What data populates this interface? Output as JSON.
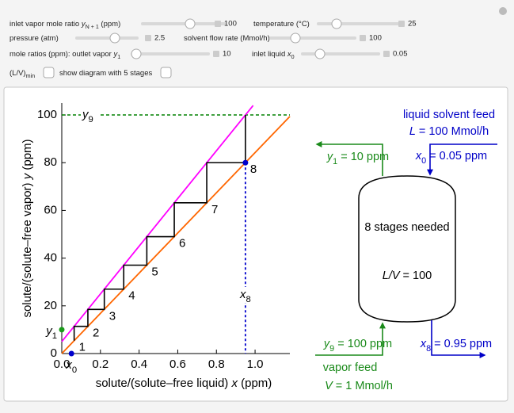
{
  "controls": {
    "inlet_vapor": {
      "label": "inlet vapor mole ratio ",
      "symbol": "y",
      "subscript": "N + 1",
      "unit": " (ppm)",
      "value": 100
    },
    "temperature": {
      "label": "temperature (°C)",
      "value": 25
    },
    "pressure": {
      "label": "pressure (atm)",
      "value": 2.5
    },
    "solvent_flow": {
      "label": "solvent flow rate (Mmol/h)",
      "value": 100
    },
    "outlet_vapor": {
      "label": "mole ratios (ppm): outlet vapor ",
      "symbol": "y",
      "subscript": "1",
      "value": 10
    },
    "inlet_liquid": {
      "label": "inlet liquid ",
      "symbol": "x",
      "subscript": "0",
      "value": 0.05
    },
    "lv_min": {
      "label": "(L/V)",
      "subscript": "min"
    },
    "show_diagram": {
      "label": "show diagram with 5 stages"
    }
  },
  "chart_data": {
    "type": "line",
    "x_label": {
      "label": "solute/(solute–free liquid) ",
      "symbol": "x",
      "unit": " (ppm)"
    },
    "y_label": {
      "label": "solute/(solute–free vapor) ",
      "symbol": "y",
      "unit": " (ppm)"
    },
    "xlim": [
      0,
      1.18
    ],
    "ylim": [
      0,
      105
    ],
    "xticks": [
      {
        "value": 0,
        "label": "0.0"
      },
      0.2,
      0.4,
      0.6,
      0.8,
      {
        "value": 1,
        "label": "1.0"
      }
    ],
    "yticks": [
      0,
      20,
      40,
      60,
      80,
      100
    ],
    "series": [
      {
        "color": "#ff6600",
        "x": [
          0,
          1.18
        ],
        "values": [
          0,
          99.4
        ]
      },
      {
        "color": "#ff00ff",
        "x": [
          0,
          0.99
        ],
        "values": [
          5,
          104
        ]
      },
      {
        "color": "#000000",
        "x": [
          0.064,
          0.064,
          0.135,
          0.135,
          0.22,
          0.22,
          0.3205,
          0.3205,
          0.44,
          0.44,
          0.582,
          0.582,
          0.75,
          0.75,
          0.95,
          0.95
        ],
        "values": [
          5.4,
          11.4,
          11.4,
          18.5,
          18.5,
          27.0,
          27.0,
          37.05,
          37.05,
          49.0,
          49.0,
          63.2,
          63.2,
          80,
          80,
          100
        ]
      }
    ],
    "stages": {
      "labels": [
        "1",
        "2",
        "3",
        "4",
        "5",
        "6",
        "7",
        "8"
      ],
      "x": [
        0.064,
        0.135,
        0.22,
        0.3205,
        0.44,
        0.582,
        0.75,
        0.95
      ],
      "y": [
        5.4,
        11.4,
        18.5,
        27.0,
        37.05,
        49.0,
        63.2,
        80
      ]
    },
    "y9_line": {
      "value": 100,
      "symbol": "y",
      "subscript": "9",
      "color": "#008000"
    },
    "x8_line": {
      "value": 0.95,
      "symbol": "x",
      "subscript": "8",
      "color": "#0000cc"
    },
    "points": [
      {
        "x": 0,
        "y": 10,
        "color": "#1a9a1a",
        "symbol": "y",
        "subscript": "1"
      },
      {
        "x": 0.05,
        "y": 0,
        "color": "#0000cc",
        "symbol": "x",
        "subscript": "0"
      },
      {
        "x": 0.95,
        "y": 80,
        "color": "#0000cc"
      }
    ]
  },
  "diagram": {
    "stages_text": "8 stages needed",
    "ratio": {
      "symbol": "L/V",
      "text": " = 100"
    },
    "vapor_out": {
      "symbol": "y",
      "subscript": "1",
      "text": " = 10 ppm"
    },
    "liquid_feed": {
      "title": "liquid solvent feed",
      "flow": {
        "symbol": "L",
        "text": " = 100 Mmol/h"
      },
      "conc": {
        "symbol": "x",
        "subscript": "0",
        "text": " = 0.05 ppm"
      }
    },
    "vapor_feed": {
      "conc": {
        "symbol": "y",
        "subscript": "9",
        "text": " = 100 ppm"
      },
      "title": "vapor feed",
      "flow": {
        "symbol": "V",
        "text": " = 1 Mmol/h"
      }
    },
    "liquid_out": {
      "symbol": "x",
      "subscript": "8",
      "text": " = 0.95 ppm"
    }
  }
}
